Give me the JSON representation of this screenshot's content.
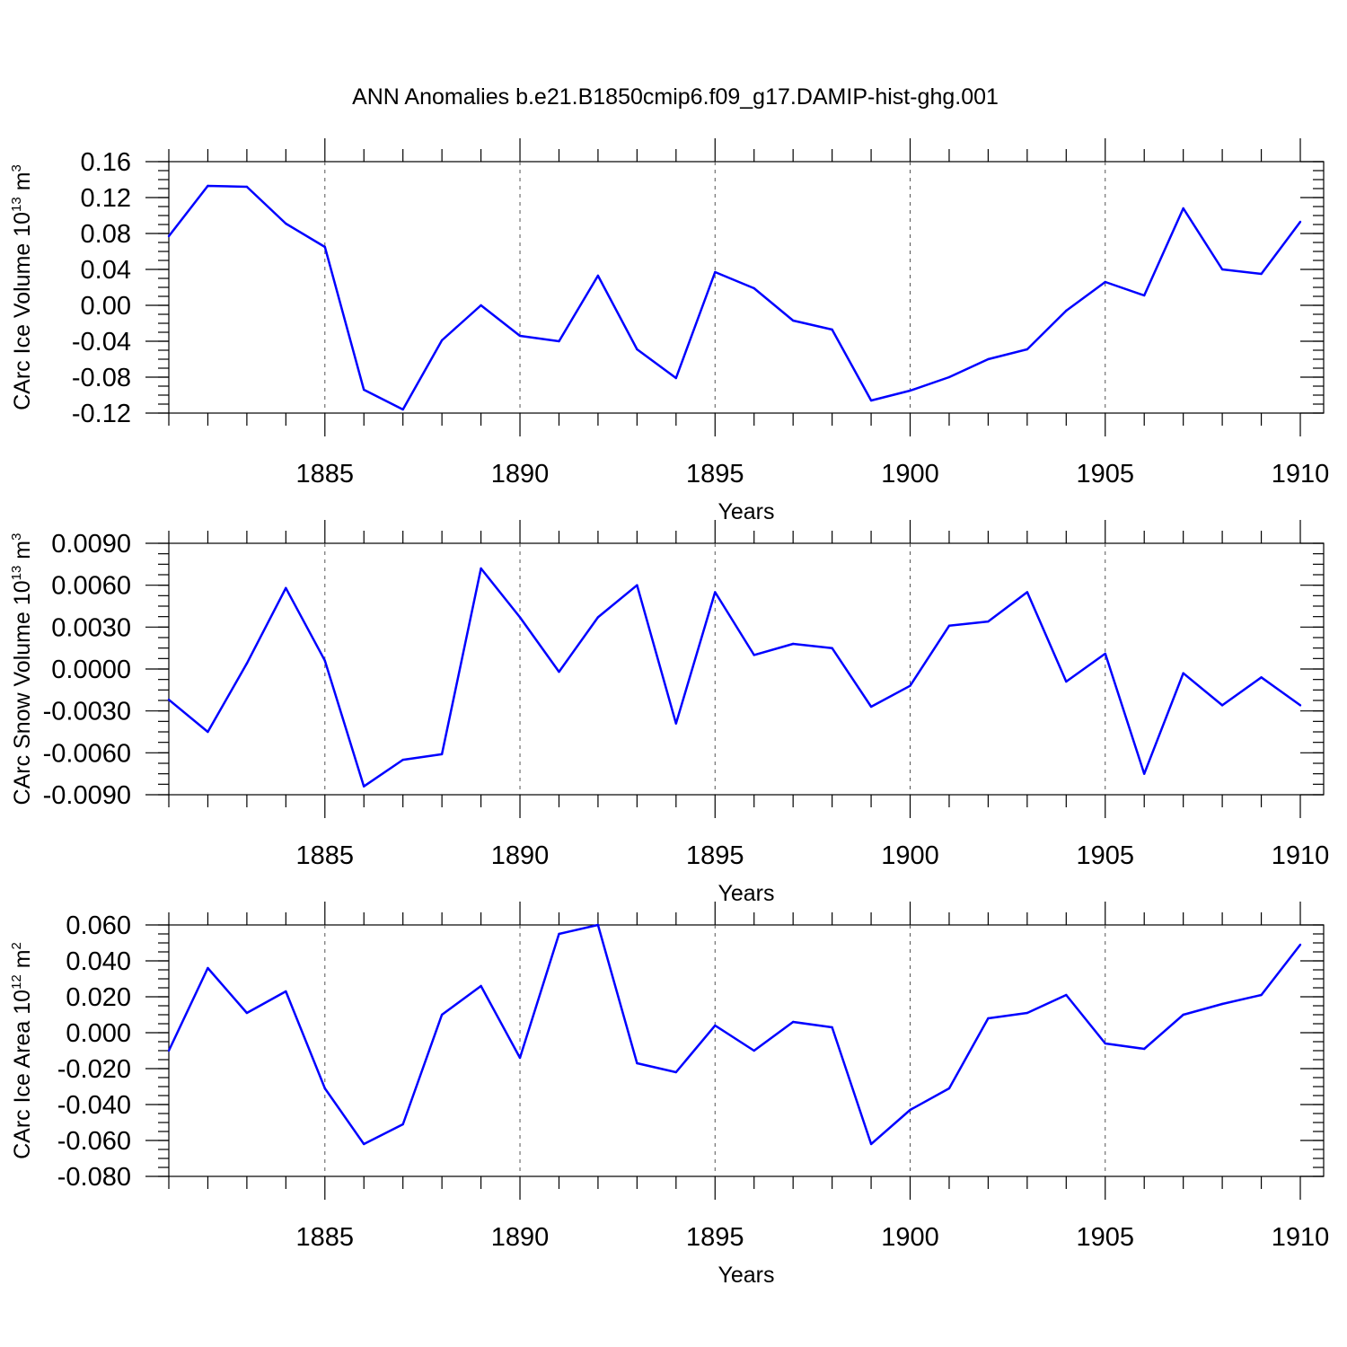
{
  "title": "ANN Anomalies b.e21.B1850cmip6.f09_g17.DAMIP-hist-ghg.001",
  "colors": {
    "line": "#0000ff",
    "axis": "#000000",
    "grid": "#555555"
  },
  "chart_data": [
    {
      "type": "line",
      "ylabel": "CArc Ice Volume 10",
      "ylabel_sup": "13",
      "ylabel_unit": " m",
      "ylabel_unit_sup": "3",
      "xlabel": "Years",
      "xlim": [
        1881,
        1910
      ],
      "ylim": [
        -0.12,
        0.16
      ],
      "yticks": [
        -0.12,
        -0.08,
        -0.04,
        0.0,
        0.04,
        0.08,
        0.12,
        0.16
      ],
      "ytick_labels": [
        "-0.12",
        "-0.08",
        "-0.04",
        "0.00",
        "0.04",
        "0.08",
        "0.12",
        "0.16"
      ],
      "yminor_step": 0.01,
      "xticks": [
        1885,
        1890,
        1895,
        1900,
        1905,
        1910
      ],
      "xtick_labels": [
        "1885",
        "1890",
        "1895",
        "1900",
        "1905",
        "1910"
      ],
      "x": [
        1881,
        1882,
        1883,
        1884,
        1885,
        1886,
        1887,
        1888,
        1889,
        1890,
        1891,
        1892,
        1893,
        1894,
        1895,
        1896,
        1897,
        1898,
        1899,
        1900,
        1901,
        1902,
        1903,
        1904,
        1905,
        1906,
        1907,
        1908,
        1909,
        1910
      ],
      "values": [
        0.077,
        0.133,
        0.132,
        0.091,
        0.065,
        -0.094,
        -0.116,
        -0.039,
        0.0,
        -0.034,
        -0.04,
        0.033,
        -0.049,
        -0.081,
        0.037,
        0.019,
        -0.017,
        -0.027,
        -0.106,
        -0.095,
        -0.08,
        -0.06,
        -0.049,
        -0.006,
        0.026,
        0.011,
        0.108,
        0.04,
        0.035,
        0.093
      ]
    },
    {
      "type": "line",
      "ylabel": "CArc Snow Volume 10",
      "ylabel_sup": "13",
      "ylabel_unit": " m",
      "ylabel_unit_sup": "3",
      "xlabel": "Years",
      "xlim": [
        1881,
        1910
      ],
      "ylim": [
        -0.009,
        0.009
      ],
      "yticks": [
        -0.009,
        -0.006,
        -0.003,
        0.0,
        0.003,
        0.006,
        0.009
      ],
      "ytick_labels": [
        "-0.0090",
        "-0.0060",
        "-0.0030",
        "0.0000",
        "0.0030",
        "0.0060",
        "0.0090"
      ],
      "yminor_step": 0.00075,
      "xticks": [
        1885,
        1890,
        1895,
        1900,
        1905,
        1910
      ],
      "xtick_labels": [
        "1885",
        "1890",
        "1895",
        "1900",
        "1905",
        "1910"
      ],
      "x": [
        1881,
        1882,
        1883,
        1884,
        1885,
        1886,
        1887,
        1888,
        1889,
        1890,
        1891,
        1892,
        1893,
        1894,
        1895,
        1896,
        1897,
        1898,
        1899,
        1900,
        1901,
        1902,
        1903,
        1904,
        1905,
        1906,
        1907,
        1908,
        1909,
        1910
      ],
      "values": [
        -0.0022,
        -0.0045,
        0.0004,
        0.0058,
        0.0006,
        -0.0084,
        -0.0065,
        -0.0061,
        0.0072,
        0.0037,
        -0.0002,
        0.0037,
        0.006,
        -0.0039,
        0.0055,
        0.001,
        0.0018,
        0.0015,
        -0.0027,
        -0.0012,
        0.0031,
        0.0034,
        0.0055,
        -0.0009,
        0.0011,
        -0.0075,
        -0.0003,
        -0.0026,
        -0.0006,
        -0.0026
      ]
    },
    {
      "type": "line",
      "ylabel": "CArc Ice Area 10",
      "ylabel_sup": "12",
      "ylabel_unit": " m",
      "ylabel_unit_sup": "2",
      "xlabel": "Years",
      "xlim": [
        1881,
        1910
      ],
      "ylim": [
        -0.08,
        0.06
      ],
      "yticks": [
        -0.08,
        -0.06,
        -0.04,
        -0.02,
        0.0,
        0.02,
        0.04,
        0.06
      ],
      "ytick_labels": [
        "-0.080",
        "-0.060",
        "-0.040",
        "-0.020",
        "0.000",
        "0.020",
        "0.040",
        "0.060"
      ],
      "yminor_step": 0.005,
      "xticks": [
        1885,
        1890,
        1895,
        1900,
        1905,
        1910
      ],
      "xtick_labels": [
        "1885",
        "1890",
        "1895",
        "1900",
        "1905",
        "1910"
      ],
      "x": [
        1881,
        1882,
        1883,
        1884,
        1885,
        1886,
        1887,
        1888,
        1889,
        1890,
        1891,
        1892,
        1893,
        1894,
        1895,
        1896,
        1897,
        1898,
        1899,
        1900,
        1901,
        1902,
        1903,
        1904,
        1905,
        1906,
        1907,
        1908,
        1909,
        1910
      ],
      "values": [
        -0.01,
        0.036,
        0.011,
        0.023,
        -0.031,
        -0.062,
        -0.051,
        0.01,
        0.026,
        -0.014,
        0.055,
        0.06,
        -0.017,
        -0.022,
        0.004,
        -0.01,
        0.006,
        0.003,
        -0.062,
        -0.043,
        -0.031,
        0.008,
        0.011,
        0.021,
        -0.006,
        -0.009,
        0.01,
        0.016,
        0.021,
        0.049
      ]
    }
  ]
}
